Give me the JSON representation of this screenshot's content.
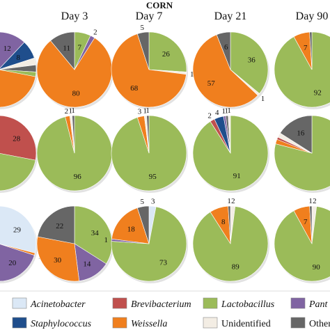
{
  "chart_data": {
    "type": "pie",
    "title": "CORN",
    "columns": [
      "Day 3",
      "Day 7",
      "Day 21",
      "Day 90"
    ],
    "categories": [
      "Acinetobacter",
      "Brevibacterium",
      "Lactobacillus",
      "Pantoea",
      "Staphylococcus",
      "Weissella",
      "Unidentified",
      "Others"
    ],
    "legend_labels": [
      "Acinetobacter",
      "Brevibacterium",
      "Lactobacillus",
      "Pant",
      "Staphylococcus",
      "Weissella",
      "Unidentified",
      "Others"
    ],
    "colors": {
      "Acinetobacter": "#dbe8f6",
      "Brevibacterium": "#c0504d",
      "Lactobacillus": "#9bbb59",
      "Pantoea": "#8064a2",
      "Staphylococcus": "#1f4e8c",
      "Weissella": "#f07f1e",
      "Unidentified": "#f3ede4",
      "Others": "#666666"
    },
    "legend_placement": "bottom",
    "pies": [
      {
        "row": 0,
        "col": 0,
        "partial": true,
        "slices": [
          {
            "category": "Pantoea",
            "value": 12,
            "label": "12"
          },
          {
            "category": "Staphylococcus",
            "value": 8,
            "label": "8"
          },
          {
            "category": "Unidentified",
            "value": 3,
            "label": "3"
          },
          {
            "category": "Others",
            "value": 3,
            "label": "3"
          },
          {
            "category": "Lactobacillus",
            "value": 2,
            "label": "2"
          },
          {
            "category": "Weissella",
            "value": 35,
            "label": ""
          },
          {
            "category": "Acinetobacter",
            "value": 29,
            "label": ""
          },
          {
            "category": "Brevibacterium",
            "value": 7,
            "label": "7"
          },
          {
            "category": "Others",
            "value": 1,
            "label": "1"
          }
        ]
      },
      {
        "row": 0,
        "col": 1,
        "slices": [
          {
            "category": "Lactobacillus",
            "value": 7,
            "label": "7"
          },
          {
            "category": "Pantoea",
            "value": 2,
            "label": "2"
          },
          {
            "category": "Weissella",
            "value": 80,
            "label": "80"
          },
          {
            "category": "Others",
            "value": 11,
            "label": "11"
          }
        ]
      },
      {
        "row": 0,
        "col": 2,
        "slices": [
          {
            "category": "Lactobacillus",
            "value": 26,
            "label": "26"
          },
          {
            "category": "Unidentified",
            "value": 1,
            "label": "1"
          },
          {
            "category": "Weissella",
            "value": 68,
            "label": "68"
          },
          {
            "category": "Others",
            "value": 5,
            "label": "5"
          }
        ]
      },
      {
        "row": 0,
        "col": 3,
        "slices": [
          {
            "category": "Lactobacillus",
            "value": 36,
            "label": "36"
          },
          {
            "category": "Unidentified",
            "value": 1,
            "label": "1"
          },
          {
            "category": "Weissella",
            "value": 57,
            "label": "57"
          },
          {
            "category": "Others",
            "value": 6,
            "label": "6"
          }
        ]
      },
      {
        "row": 0,
        "col": 4,
        "partial": true,
        "slices": [
          {
            "category": "Lactobacillus",
            "value": 92,
            "label": "92"
          },
          {
            "category": "Weissella",
            "value": 7,
            "label": "7"
          },
          {
            "category": "Others",
            "value": 1,
            "label": ""
          }
        ]
      },
      {
        "row": 1,
        "col": 0,
        "partial": true,
        "slices": [
          {
            "category": "Brevibacterium",
            "value": 28,
            "label": "28"
          },
          {
            "category": "Lactobacillus",
            "value": 55,
            "label": ""
          },
          {
            "category": "Staphylococcus",
            "value": 10,
            "label": ""
          },
          {
            "category": "Pantoea",
            "value": 7,
            "label": "7"
          }
        ]
      },
      {
        "row": 1,
        "col": 1,
        "slices": [
          {
            "category": "Lactobacillus",
            "value": 96,
            "label": "96"
          },
          {
            "category": "Weissella",
            "value": 2,
            "label": "2"
          },
          {
            "category": "Unidentified",
            "value": 1,
            "label": "1"
          },
          {
            "category": "Others",
            "value": 1,
            "label": "1"
          }
        ]
      },
      {
        "row": 1,
        "col": 2,
        "slices": [
          {
            "category": "Lactobacillus",
            "value": 95,
            "label": "95"
          },
          {
            "category": "Weissella",
            "value": 3,
            "label": "3"
          },
          {
            "category": "Unidentified",
            "value": 1,
            "label": "1"
          },
          {
            "category": "Others",
            "value": 1,
            "label": "1"
          }
        ]
      },
      {
        "row": 1,
        "col": 3,
        "slices": [
          {
            "category": "Lactobacillus",
            "value": 91,
            "label": "91"
          },
          {
            "category": "Brevibacterium",
            "value": 2,
            "label": "2"
          },
          {
            "category": "Staphylococcus",
            "value": 4,
            "label": "4"
          },
          {
            "category": "Pantoea",
            "value": 1,
            "label": "1"
          },
          {
            "category": "Others",
            "value": 1,
            "label": "1"
          },
          {
            "category": "Unidentified",
            "value": 1,
            "label": "1"
          }
        ]
      },
      {
        "row": 1,
        "col": 4,
        "partial": true,
        "slices": [
          {
            "category": "Lactobacillus",
            "value": 79,
            "label": ""
          },
          {
            "category": "Weissella",
            "value": 2,
            "label": ""
          },
          {
            "category": "Brevibacterium",
            "value": 1,
            "label": ""
          },
          {
            "category": "Unidentified",
            "value": 2,
            "label": ""
          },
          {
            "category": "Others",
            "value": 16,
            "label": "16"
          }
        ]
      },
      {
        "row": 2,
        "col": 0,
        "partial": true,
        "slices": [
          {
            "category": "Acinetobacter",
            "value": 29,
            "label": "29"
          },
          {
            "category": "Weissella",
            "value": 1,
            "label": "1"
          },
          {
            "category": "Pantoea",
            "value": 20,
            "label": "20"
          },
          {
            "category": "Lactobacillus",
            "value": 30,
            "label": ""
          },
          {
            "category": "Others",
            "value": 20,
            "label": ""
          }
        ]
      },
      {
        "row": 2,
        "col": 1,
        "slices": [
          {
            "category": "Lactobacillus",
            "value": 34,
            "label": "34"
          },
          {
            "category": "Pantoea",
            "value": 14,
            "label": "14"
          },
          {
            "category": "Weissella",
            "value": 30,
            "label": "30"
          },
          {
            "category": "Others",
            "value": 22,
            "label": "22"
          }
        ]
      },
      {
        "row": 2,
        "col": 2,
        "slices": [
          {
            "category": "Acinetobacter",
            "value": 3,
            "label": "3"
          },
          {
            "category": "Lactobacillus",
            "value": 73,
            "label": "73"
          },
          {
            "category": "Pantoea",
            "value": 1,
            "label": "1"
          },
          {
            "category": "Weissella",
            "value": 18,
            "label": "18"
          },
          {
            "category": "Others",
            "value": 5,
            "label": "5"
          }
        ]
      },
      {
        "row": 2,
        "col": 3,
        "slices": [
          {
            "category": "Unidentified",
            "value": 2,
            "label": "2"
          },
          {
            "category": "Lactobacillus",
            "value": 89,
            "label": "89"
          },
          {
            "category": "Weissella",
            "value": 8,
            "label": "8"
          },
          {
            "category": "Others",
            "value": 1,
            "label": "1"
          }
        ]
      },
      {
        "row": 2,
        "col": 4,
        "partial": true,
        "slices": [
          {
            "category": "Unidentified",
            "value": 2,
            "label": "2"
          },
          {
            "category": "Lactobacillus",
            "value": 90,
            "label": "90"
          },
          {
            "category": "Weissella",
            "value": 7,
            "label": "7"
          },
          {
            "category": "Others",
            "value": 1,
            "label": "1"
          }
        ]
      }
    ]
  }
}
